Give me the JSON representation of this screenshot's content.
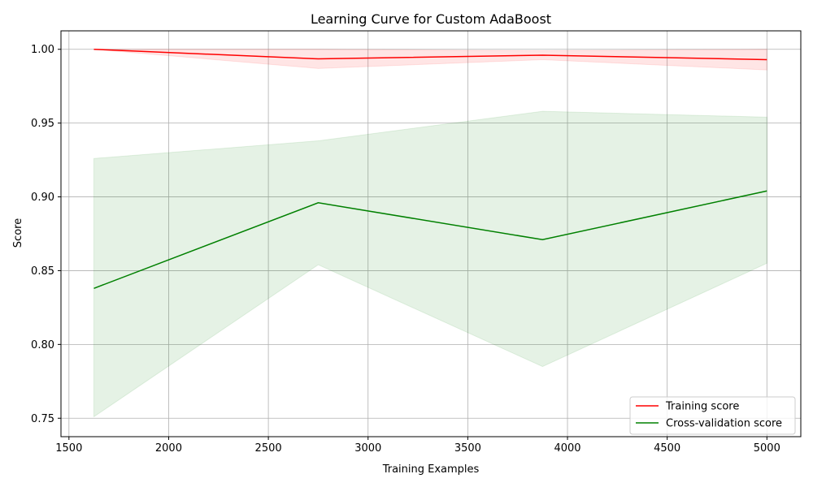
{
  "chart_data": {
    "type": "line",
    "title": "Learning Curve for Custom AdaBoost",
    "xlabel": "Training Examples",
    "ylabel": "Score",
    "xlim": [
      1460,
      5170
    ],
    "ylim": [
      0.7375,
      1.0125
    ],
    "x_ticks": [
      1500,
      2000,
      2500,
      3000,
      3500,
      4000,
      4500,
      5000
    ],
    "x_tick_labels": [
      "1500",
      "2000",
      "2500",
      "3000",
      "3500",
      "4000",
      "4500",
      "5000"
    ],
    "y_ticks": [
      0.75,
      0.8,
      0.85,
      0.9,
      0.95,
      1.0
    ],
    "y_tick_labels": [
      "0.75",
      "0.80",
      "0.85",
      "0.90",
      "0.95",
      "1.00"
    ],
    "grid": true,
    "legend_position": "lower-right",
    "x": [
      1625,
      2750,
      3875,
      5000
    ],
    "series": [
      {
        "name": "Training score",
        "color": "#ff0000",
        "band_color": "#ff0000",
        "values": [
          1.0,
          0.9935,
          0.996,
          0.993
        ],
        "band_lower": [
          1.0,
          0.987,
          0.993,
          0.986
        ],
        "band_upper": [
          1.0,
          1.0,
          0.999,
          1.0
        ]
      },
      {
        "name": "Cross-validation score",
        "color": "#008000",
        "band_color": "#008000",
        "values": [
          0.838,
          0.896,
          0.871,
          0.904
        ],
        "band_lower": [
          0.751,
          0.854,
          0.785,
          0.855
        ],
        "band_upper": [
          0.926,
          0.938,
          0.958,
          0.954
        ]
      }
    ]
  }
}
